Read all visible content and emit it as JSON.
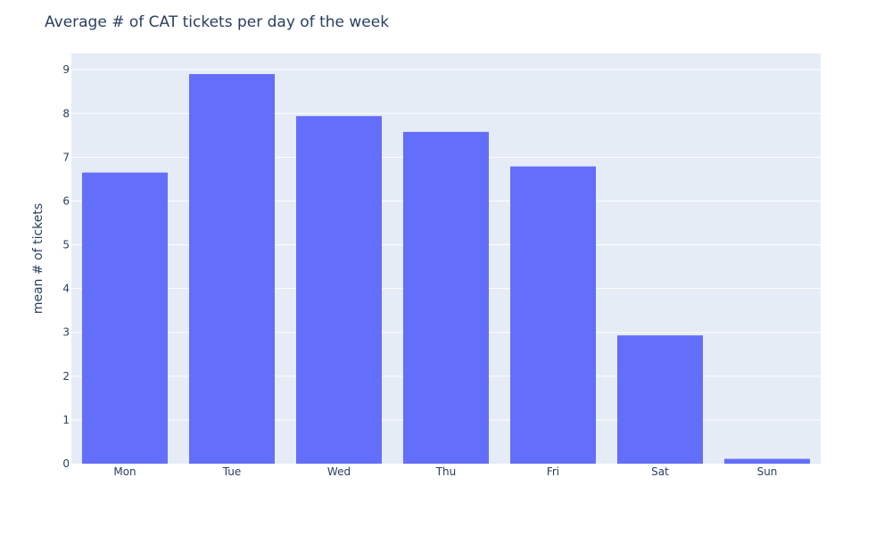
{
  "chart_data": {
    "type": "bar",
    "title": "Average # of CAT tickets per day of the week",
    "xlabel": "",
    "ylabel": "mean # of tickets",
    "categories": [
      "Mon",
      "Tue",
      "Wed",
      "Thu",
      "Fri",
      "Sat",
      "Sun"
    ],
    "values": [
      6.65,
      8.9,
      7.94,
      7.58,
      6.79,
      2.93,
      0.11
    ],
    "ylim": [
      0,
      9.37
    ],
    "yticks": [
      "0",
      "1",
      "2",
      "3",
      "4",
      "5",
      "6",
      "7",
      "8",
      "9"
    ],
    "grid": true,
    "legend": "none",
    "colors": {
      "bar": "#636efa",
      "plot_background": "#e5ecf6",
      "gridline": "#ffffff",
      "text": "#2a3f5f"
    }
  }
}
